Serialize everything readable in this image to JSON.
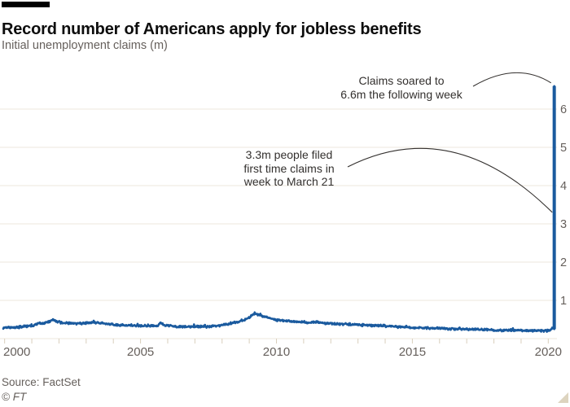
{
  "header": {
    "title": "Record number of Americans apply for jobless benefits",
    "subtitle": "Initial unemployment claims (m)"
  },
  "footer": {
    "source": "Source: FactSet",
    "copyright": "© FT"
  },
  "colors": {
    "line": "#1a5a9e",
    "grid": "#ece7dd",
    "tick": "#d9cfbd",
    "axis_label": "#66605c",
    "annotation_text": "#33302e",
    "annotation_curve": "#33302e",
    "title": "#0d0d0d",
    "subtitle": "#66605c",
    "header_bar": "#000000",
    "background": "#ffffff",
    "corner_triangle": "#ddd4bf"
  },
  "chart_data": {
    "type": "line",
    "title": "Record number of Americans apply for jobless benefits",
    "ylabel": "Initial unemployment claims (m)",
    "xlabel": "",
    "grid": "horizontal",
    "y_axis_side": "right",
    "xlim": [
      1999.95,
      2020.32
    ],
    "ylim": [
      0,
      7
    ],
    "x_tick_labels": [
      "2000",
      "2005",
      "2010",
      "2015",
      "2020"
    ],
    "x_labeled_years": [
      2000,
      2005,
      2010,
      2015,
      2020
    ],
    "x_minor_tick_step_years": 1,
    "y_ticks": [
      1,
      2,
      3,
      4,
      5,
      6
    ],
    "series": [
      {
        "name": "Initial unemployment claims (m)",
        "unit": "millions per week",
        "frequency": "weekly",
        "noise_amplitude": 0.035,
        "anchors": [
          [
            1999.95,
            0.28
          ],
          [
            2000.5,
            0.3
          ],
          [
            2001.0,
            0.33
          ],
          [
            2001.25,
            0.4
          ],
          [
            2001.45,
            0.39
          ],
          [
            2001.7,
            0.47
          ],
          [
            2001.78,
            0.5
          ],
          [
            2001.9,
            0.44
          ],
          [
            2002.3,
            0.4
          ],
          [
            2002.9,
            0.4
          ],
          [
            2003.3,
            0.42
          ],
          [
            2003.7,
            0.39
          ],
          [
            2004.2,
            0.35
          ],
          [
            2004.8,
            0.34
          ],
          [
            2005.3,
            0.33
          ],
          [
            2005.65,
            0.33
          ],
          [
            2005.73,
            0.43
          ],
          [
            2005.85,
            0.36
          ],
          [
            2006.3,
            0.31
          ],
          [
            2007.0,
            0.31
          ],
          [
            2007.6,
            0.32
          ],
          [
            2008.0,
            0.35
          ],
          [
            2008.5,
            0.42
          ],
          [
            2008.8,
            0.48
          ],
          [
            2009.0,
            0.55
          ],
          [
            2009.15,
            0.63
          ],
          [
            2009.25,
            0.65
          ],
          [
            2009.4,
            0.61
          ],
          [
            2009.7,
            0.55
          ],
          [
            2010.0,
            0.48
          ],
          [
            2010.4,
            0.46
          ],
          [
            2011.0,
            0.43
          ],
          [
            2011.5,
            0.42
          ],
          [
            2012.0,
            0.39
          ],
          [
            2012.5,
            0.38
          ],
          [
            2013.0,
            0.36
          ],
          [
            2013.5,
            0.35
          ],
          [
            2014.0,
            0.33
          ],
          [
            2014.6,
            0.3
          ],
          [
            2015.2,
            0.28
          ],
          [
            2016.0,
            0.27
          ],
          [
            2016.8,
            0.25
          ],
          [
            2017.5,
            0.24
          ],
          [
            2018.2,
            0.22
          ],
          [
            2019.0,
            0.215
          ],
          [
            2019.6,
            0.21
          ],
          [
            2020.05,
            0.21
          ],
          [
            2020.16,
            0.28
          ]
        ]
      }
    ],
    "spike": {
      "x_year": 2020.22,
      "week_to_march_21_value": 3.3,
      "following_week_value": 6.6
    },
    "annotations": [
      {
        "id": "claims-soared",
        "lines": [
          "Claims soared to",
          "6.6m the following week"
        ],
        "points_to_value": 6.6
      },
      {
        "id": "march21",
        "lines": [
          "3.3m people filed",
          "first time claims in",
          "week to March 21"
        ],
        "points_to_value": 3.3
      }
    ]
  }
}
